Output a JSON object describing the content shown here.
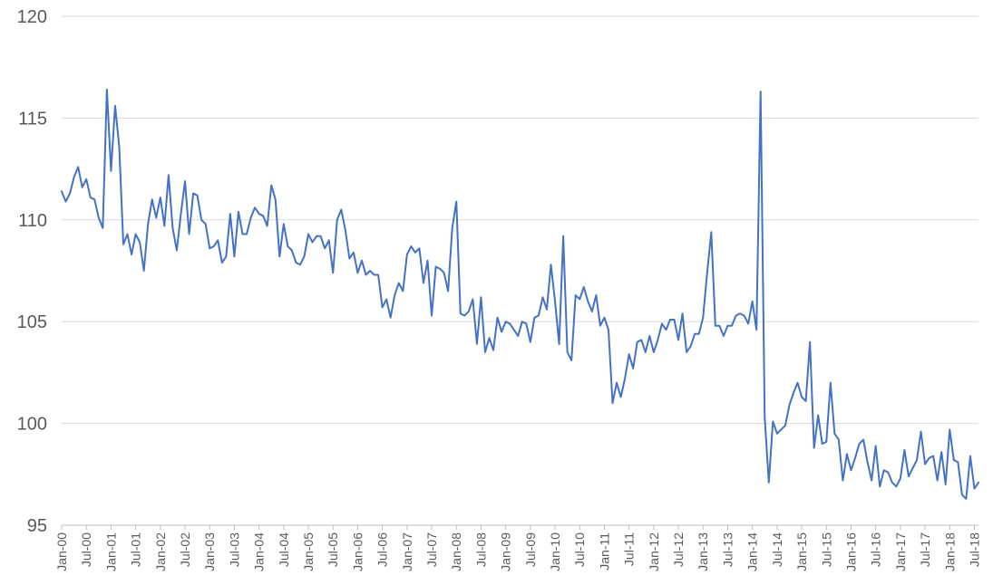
{
  "chart_data": {
    "type": "line",
    "title": "",
    "xlabel": "",
    "ylabel": "",
    "ylim": [
      95,
      120
    ],
    "yticks": [
      95,
      100,
      105,
      110,
      115,
      120
    ],
    "grid": true,
    "legend": "none",
    "x_start": "Jan-00",
    "x_tick_labels": [
      "Jan-00",
      "Jul-00",
      "Jan-01",
      "Jul-01",
      "Jan-02",
      "Jul-02",
      "Jan-03",
      "Jul-03",
      "Jan-04",
      "Jul-04",
      "Jan-05",
      "Jul-05",
      "Jan-06",
      "Jul-06",
      "Jan-07",
      "Jul-07",
      "Jan-08",
      "Jul-08",
      "Jan-09",
      "Jul-09",
      "Jan-10",
      "Jul-10",
      "Jan-11",
      "Jul-11",
      "Jan-12",
      "Jul-12",
      "Jan-13",
      "Jul-13",
      "Jan-14",
      "Jul-14",
      "Jan-15",
      "Jul-15",
      "Jan-16",
      "Jul-16",
      "Jan-17",
      "Jul-17",
      "Jan-18",
      "Jul-18"
    ],
    "colors": {
      "line": "#4472c4",
      "grid": "#d9d9d9",
      "text": "#595959"
    },
    "series": [
      {
        "name": "",
        "values": [
          111.4,
          110.9,
          111.3,
          112.1,
          112.6,
          111.6,
          112.0,
          111.1,
          111.0,
          110.1,
          109.6,
          116.4,
          112.4,
          115.6,
          113.6,
          108.8,
          109.3,
          108.3,
          109.3,
          108.9,
          107.5,
          109.8,
          111.0,
          110.1,
          111.1,
          109.7,
          112.2,
          109.6,
          108.5,
          110.3,
          111.9,
          109.3,
          111.3,
          111.2,
          110.0,
          109.8,
          108.6,
          108.7,
          109.0,
          107.9,
          108.2,
          110.3,
          108.2,
          110.4,
          109.3,
          109.3,
          110.1,
          110.6,
          110.3,
          110.2,
          109.7,
          111.7,
          111.0,
          108.2,
          109.8,
          108.7,
          108.5,
          107.9,
          107.8,
          108.2,
          109.3,
          108.9,
          109.2,
          109.2,
          108.6,
          109.0,
          107.4,
          110.0,
          110.5,
          109.5,
          108.1,
          108.4,
          107.4,
          108.0,
          107.3,
          107.5,
          107.3,
          107.3,
          105.7,
          106.1,
          105.2,
          106.3,
          106.9,
          106.5,
          108.3,
          108.7,
          108.4,
          108.6,
          106.9,
          108.0,
          105.3,
          107.7,
          107.6,
          107.4,
          106.5,
          109.6,
          110.9,
          105.4,
          105.3,
          105.5,
          106.1,
          103.9,
          106.2,
          103.5,
          104.2,
          103.6,
          105.2,
          104.5,
          105.0,
          104.9,
          104.6,
          104.3,
          105.0,
          104.9,
          104.0,
          105.2,
          105.3,
          106.2,
          105.6,
          107.8,
          106.0,
          103.9,
          109.2,
          103.5,
          103.1,
          106.3,
          106.1,
          106.7,
          106.0,
          105.5,
          106.3,
          104.8,
          105.2,
          104.6,
          101.0,
          102.0,
          101.3,
          102.2,
          103.4,
          102.7,
          104.0,
          104.1,
          103.5,
          104.3,
          103.5,
          104.1,
          104.9,
          104.6,
          105.1,
          105.1,
          104.1,
          105.4,
          103.5,
          103.8,
          104.4,
          104.4,
          105.2,
          107.4,
          109.4,
          104.8,
          104.8,
          104.3,
          104.8,
          104.8,
          105.3,
          105.4,
          105.3,
          104.9,
          106.0,
          104.6,
          116.3,
          100.3,
          97.1,
          100.1,
          99.5,
          99.7,
          99.9,
          100.9,
          101.5,
          102.0,
          101.3,
          101.1,
          104.0,
          98.8,
          100.4,
          99.0,
          99.1,
          102.0,
          99.5,
          99.2,
          97.2,
          98.5,
          97.7,
          98.3,
          99.0,
          99.2,
          98.1,
          97.2,
          98.9,
          96.9,
          97.7,
          97.6,
          97.1,
          96.9,
          97.3,
          98.7,
          97.4,
          97.8,
          98.2,
          99.6,
          98.0,
          98.3,
          98.4,
          97.2,
          98.6,
          97.0,
          99.7,
          98.2,
          98.1,
          96.5,
          96.3,
          98.4,
          96.8,
          97.1
        ]
      }
    ]
  }
}
